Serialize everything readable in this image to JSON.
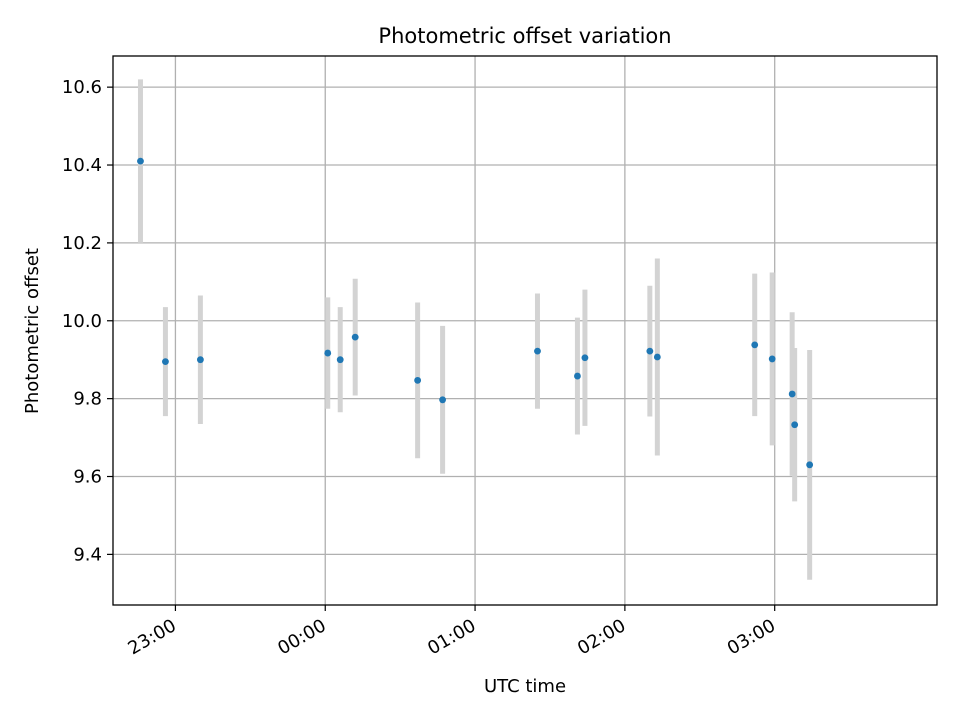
{
  "chart_data": {
    "type": "scatter",
    "title": "Photometric offset variation",
    "xlabel": "UTC time",
    "ylabel": "Photometric offset",
    "x_axis": "time of day (HH:MM, crossing midnight)",
    "xlim": [
      "22:35",
      "04:05"
    ],
    "ylim": [
      9.27,
      10.68
    ],
    "x_ticks": [
      "23:00",
      "00:00",
      "01:00",
      "02:00",
      "03:00"
    ],
    "y_ticks": [
      "9.4",
      "9.6",
      "9.8",
      "10.0",
      "10.2",
      "10.4",
      "10.6"
    ],
    "grid": true,
    "point_color": "#1f77b4",
    "errorbar_color": "#d3d3d3",
    "points": [
      {
        "x": "22:46",
        "y": 10.41,
        "yerr": 0.21
      },
      {
        "x": "22:56",
        "y": 9.895,
        "yerr": 0.14
      },
      {
        "x": "23:10",
        "y": 9.9,
        "yerr": 0.165
      },
      {
        "x": "00:01",
        "y": 9.917,
        "yerr": 0.143
      },
      {
        "x": "00:06",
        "y": 9.9,
        "yerr": 0.135
      },
      {
        "x": "00:12",
        "y": 9.958,
        "yerr": 0.15
      },
      {
        "x": "00:37",
        "y": 9.847,
        "yerr": 0.2
      },
      {
        "x": "00:47",
        "y": 9.797,
        "yerr": 0.19
      },
      {
        "x": "01:25",
        "y": 9.922,
        "yerr": 0.148
      },
      {
        "x": "01:41",
        "y": 9.858,
        "yerr": 0.15
      },
      {
        "x": "01:44",
        "y": 9.905,
        "yerr": 0.175
      },
      {
        "x": "02:10",
        "y": 9.922,
        "yerr": 0.168
      },
      {
        "x": "02:13",
        "y": 9.907,
        "yerr": 0.253
      },
      {
        "x": "02:52",
        "y": 9.938,
        "yerr": 0.183
      },
      {
        "x": "02:59",
        "y": 9.902,
        "yerr": 0.222
      },
      {
        "x": "03:07",
        "y": 9.812,
        "yerr": 0.21
      },
      {
        "x": "03:08",
        "y": 9.733,
        "yerr": 0.197
      },
      {
        "x": "03:14",
        "y": 9.63,
        "yerr": 0.295
      }
    ]
  }
}
